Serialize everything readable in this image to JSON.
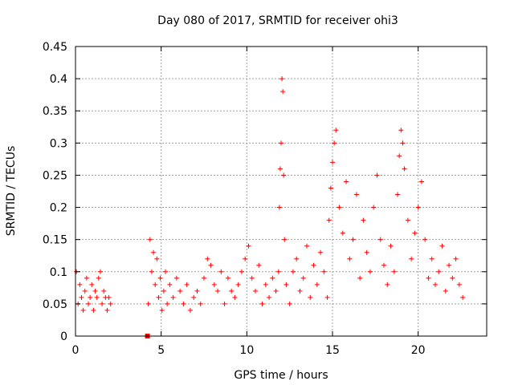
{
  "chart_data": {
    "type": "scatter",
    "title": "Day 080 of 2017, SRMTID for receiver ohi3",
    "xlabel": "GPS time / hours",
    "ylabel": "SRMTID / TECUs",
    "xlim": [
      0,
      24
    ],
    "ylim": [
      0,
      0.45
    ],
    "xticks": [
      0,
      5,
      10,
      15,
      20
    ],
    "xtick_labels": [
      "0",
      "5",
      "10",
      "15",
      "20"
    ],
    "yticks": [
      0,
      0.05,
      0.1,
      0.15,
      0.2,
      0.25,
      0.3,
      0.35,
      0.4,
      0.45
    ],
    "ytick_labels": [
      "0",
      "0.05",
      "0.1",
      "0.15",
      "0.2",
      "0.25",
      "0.3",
      "0.35",
      "0.4",
      "0.45"
    ],
    "grid": true,
    "marker": "+",
    "color": "#ff0000",
    "series": [
      {
        "name": "SRMTID",
        "x": [
          0.05,
          0.15,
          0.25,
          0.35,
          0.45,
          0.55,
          0.65,
          0.75,
          0.85,
          0.95,
          1.05,
          1.15,
          1.25,
          1.35,
          1.45,
          1.55,
          1.65,
          1.75,
          1.85,
          1.95,
          2.05,
          4.25,
          4.35,
          4.45,
          4.55,
          4.65,
          4.75,
          4.85,
          4.95,
          5.05,
          5.15,
          5.25,
          5.35,
          5.5,
          5.7,
          5.9,
          6.1,
          6.3,
          6.5,
          6.7,
          6.9,
          7.1,
          7.3,
          7.5,
          7.7,
          7.9,
          8.1,
          8.3,
          8.5,
          8.7,
          8.9,
          9.1,
          9.3,
          9.5,
          9.7,
          9.9,
          10.1,
          10.3,
          10.5,
          10.7,
          10.9,
          11.1,
          11.3,
          11.5,
          11.7,
          11.85,
          11.9,
          11.95,
          12.0,
          12.05,
          12.1,
          12.15,
          12.2,
          12.3,
          12.5,
          12.7,
          12.9,
          13.1,
          13.3,
          13.5,
          13.7,
          13.9,
          14.1,
          14.3,
          14.5,
          14.7,
          14.8,
          14.9,
          15.0,
          15.1,
          15.2,
          15.4,
          15.6,
          15.8,
          16.0,
          16.2,
          16.4,
          16.6,
          16.8,
          17.0,
          17.2,
          17.4,
          17.6,
          17.8,
          18.0,
          18.2,
          18.4,
          18.6,
          18.8,
          18.9,
          19.0,
          19.1,
          19.2,
          19.4,
          19.6,
          19.8,
          20.0,
          20.2,
          20.4,
          20.6,
          20.8,
          21.0,
          21.2,
          21.4,
          21.6,
          21.8,
          22.0,
          22.2,
          22.4,
          22.6
        ],
        "y": [
          0.1,
          0.05,
          0.08,
          0.06,
          0.04,
          0.07,
          0.09,
          0.05,
          0.06,
          0.08,
          0.04,
          0.07,
          0.06,
          0.09,
          0.1,
          0.05,
          0.07,
          0.06,
          0.04,
          0.06,
          0.05,
          0.05,
          0.15,
          0.1,
          0.13,
          0.08,
          0.12,
          0.06,
          0.09,
          0.04,
          0.07,
          0.1,
          0.05,
          0.08,
          0.06,
          0.09,
          0.07,
          0.05,
          0.08,
          0.04,
          0.06,
          0.07,
          0.05,
          0.09,
          0.12,
          0.11,
          0.08,
          0.07,
          0.1,
          0.05,
          0.09,
          0.07,
          0.06,
          0.08,
          0.1,
          0.12,
          0.14,
          0.09,
          0.07,
          0.11,
          0.05,
          0.08,
          0.06,
          0.09,
          0.07,
          0.1,
          0.2,
          0.26,
          0.3,
          0.4,
          0.38,
          0.25,
          0.15,
          0.08,
          0.05,
          0.1,
          0.12,
          0.07,
          0.09,
          0.14,
          0.06,
          0.11,
          0.08,
          0.13,
          0.1,
          0.06,
          0.18,
          0.23,
          0.27,
          0.3,
          0.32,
          0.2,
          0.16,
          0.24,
          0.12,
          0.15,
          0.22,
          0.09,
          0.18,
          0.13,
          0.1,
          0.2,
          0.25,
          0.15,
          0.11,
          0.08,
          0.14,
          0.1,
          0.22,
          0.28,
          0.32,
          0.3,
          0.26,
          0.18,
          0.12,
          0.16,
          0.2,
          0.24,
          0.15,
          0.09,
          0.12,
          0.08,
          0.1,
          0.14,
          0.07,
          0.11,
          0.09,
          0.12,
          0.08,
          0.06
        ]
      },
      {
        "name": "marker",
        "x": [
          4.2
        ],
        "y": [
          0.0
        ]
      }
    ]
  }
}
